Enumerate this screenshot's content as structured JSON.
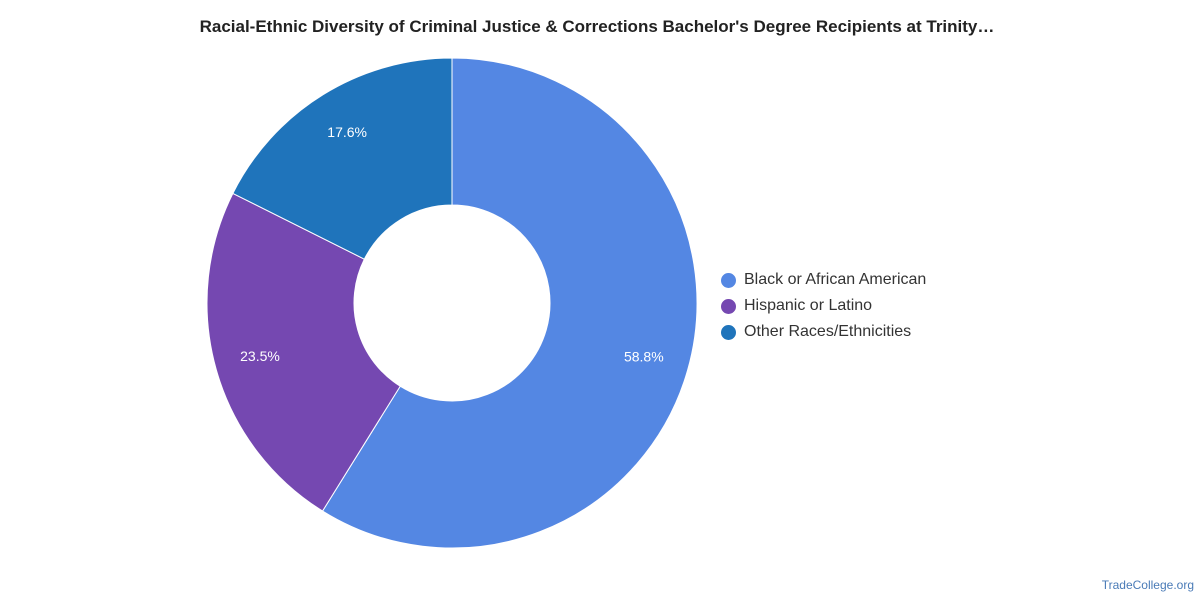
{
  "chart_data": {
    "type": "pie",
    "title": "Racial-Ethnic Diversity of Criminal Justice & Corrections Bachelor's Degree Recipients at Trinity…",
    "categories": [
      "Black or African American",
      "Hispanic or Latino",
      "Other Races/Ethnicities"
    ],
    "values": [
      58.8,
      23.5,
      17.6
    ],
    "labels": [
      "58.8%",
      "23.5%",
      "17.6%"
    ],
    "colors": [
      "#5487e3",
      "#7548b1",
      "#1f74bb"
    ],
    "donut": true,
    "legend_position": "right"
  },
  "credit": "TradeCollege.org"
}
